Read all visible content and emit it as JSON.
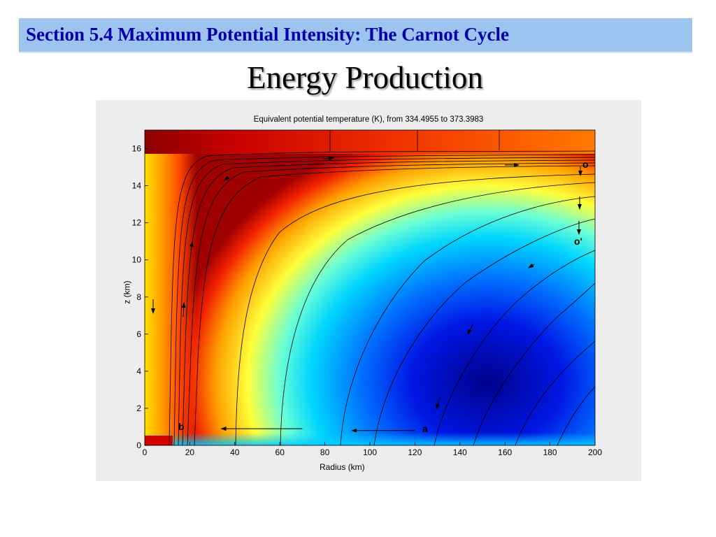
{
  "section": {
    "title": "Section 5.4 Maximum Potential Intensity: The Carnot Cycle"
  },
  "slide": {
    "title": "Energy Production"
  },
  "chart_data": {
    "type": "heatmap",
    "title": "Equivalent potential temperature (K), from 334.4955 to 373.3983",
    "xlabel": "Radius (km)",
    "ylabel": "z (km)",
    "xlim": [
      0,
      200
    ],
    "ylim": [
      0,
      17
    ],
    "xticks": [
      0,
      20,
      40,
      60,
      80,
      100,
      120,
      140,
      160,
      180,
      200
    ],
    "yticks": [
      0,
      2,
      4,
      6,
      8,
      10,
      12,
      14,
      16
    ],
    "value_range": [
      334.4955,
      373.3983
    ],
    "colormap": "jet",
    "grid": false,
    "annotations": [
      {
        "label": "b",
        "x": 17,
        "y": 1.0
      },
      {
        "label": "a",
        "x": 125,
        "y": 0.9
      },
      {
        "label": "o",
        "x": 196,
        "y": 15.3
      },
      {
        "label": "o'",
        "x": 193,
        "y": 11.2
      }
    ],
    "inflow_arrows": [
      {
        "from": [
          70,
          0.9
        ],
        "to": [
          34,
          0.9
        ]
      },
      {
        "from": [
          120,
          0.8
        ],
        "to": [
          92,
          0.8
        ]
      }
    ]
  }
}
